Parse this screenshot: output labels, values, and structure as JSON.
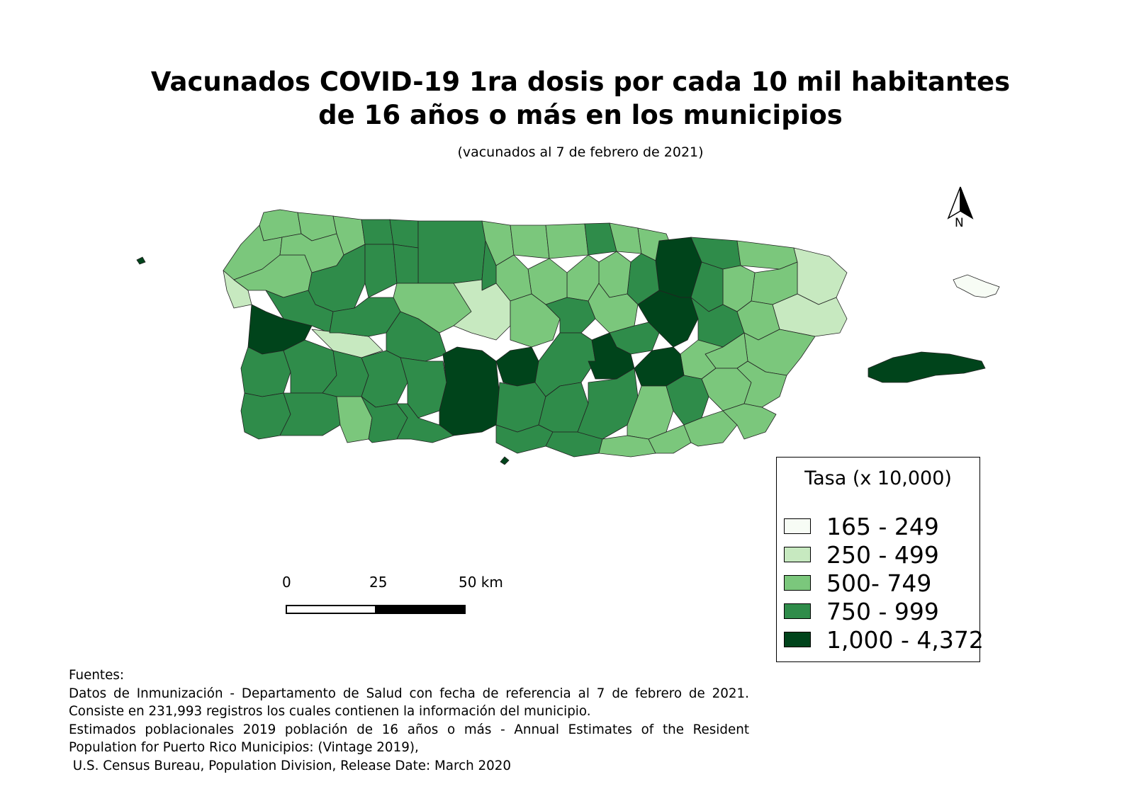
{
  "title_line1": "Vacunados COVID-19 1ra dosis por cada 10 mil habitantes",
  "title_line2": "de 16 años o más en los municipios",
  "subtitle": "(vacunados al 7 de febrero de 2021)",
  "north_label": "N",
  "legend": {
    "title": "Tasa (x 10,000)",
    "items": [
      {
        "label": "165 - 249",
        "color": "#f7fcf5"
      },
      {
        "label": "250 - 499",
        "color": "#c7e9c0"
      },
      {
        "label": "500- 749",
        "color": "#7bc77c"
      },
      {
        "label": "750 - 999",
        "color": "#2f8c4a"
      },
      {
        "label": "1,000 - 4,372",
        "color": "#00441b"
      }
    ]
  },
  "scale": {
    "label_0": "0",
    "label_25": "25",
    "label_50": "50 km"
  },
  "sources": {
    "heading": "Fuentes:",
    "line1": "Datos de Inmunización - Departamento de Salud con fecha de referencia al 7 de febrero de 2021.",
    "line2": "Consiste en 231,993 registros los cuales contienen la información del municipio.",
    "line3": "Estimados poblacionales 2019 población de 16 años o más - Annual Estimates of the Resident",
    "line4": "Population for Puerto Rico Municipios: (Vintage 2019),",
    "line5": " U.S. Census Bureau, Population Division, Release Date: March 2020"
  }
}
